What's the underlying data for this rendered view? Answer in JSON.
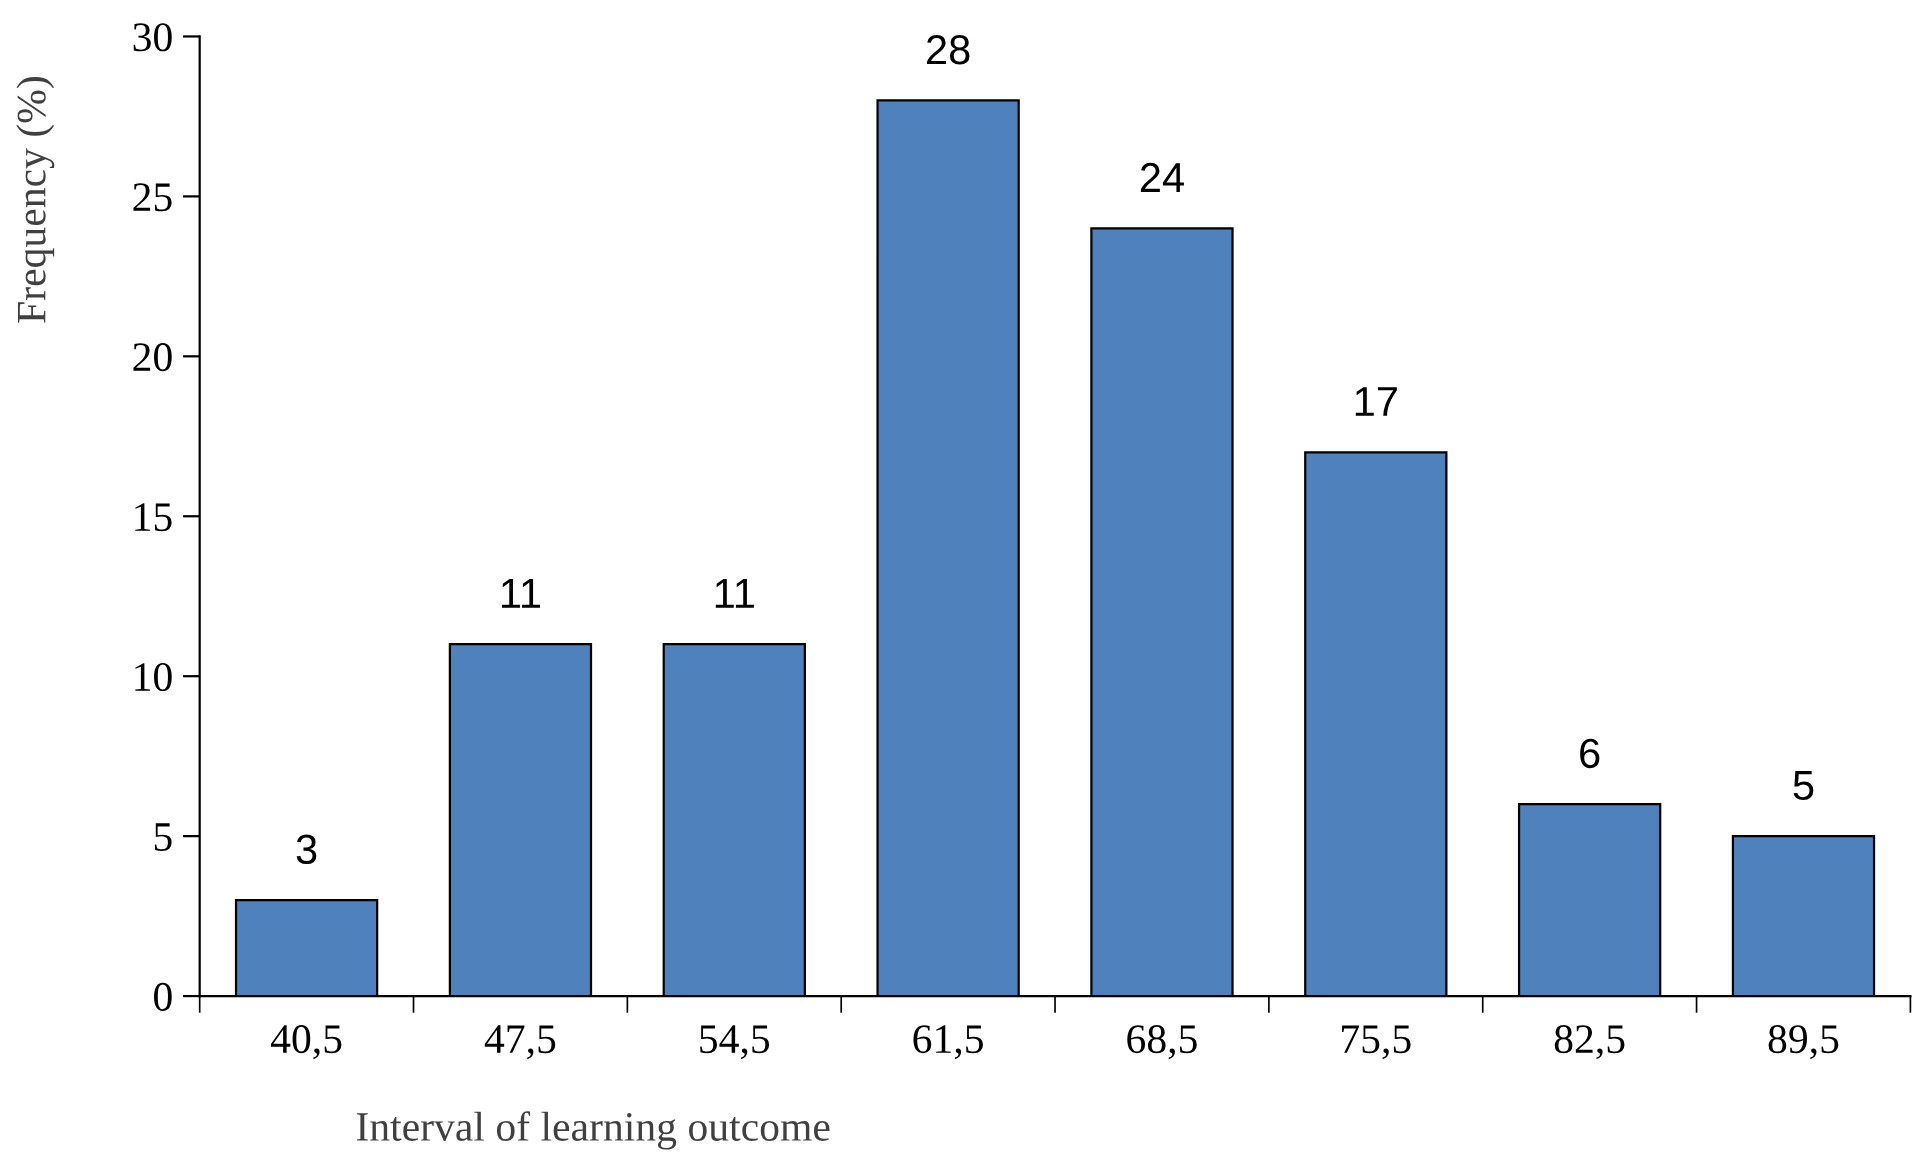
{
  "chart_data": {
    "type": "bar",
    "xlabel": "Interval of learning outcome",
    "ylabel": "Frequency (%)",
    "categories": [
      "40,5",
      "47,5",
      "54,5",
      "61,5",
      "68,5",
      "75,5",
      "82,5",
      "89,5"
    ],
    "values": [
      3,
      11,
      11,
      28,
      24,
      17,
      6,
      5
    ],
    "color": "#4f81bd",
    "ylim": [
      0,
      30
    ],
    "yticks": [
      0,
      5,
      10,
      15,
      20,
      25,
      30
    ],
    "data_labels": true,
    "grid": false
  }
}
